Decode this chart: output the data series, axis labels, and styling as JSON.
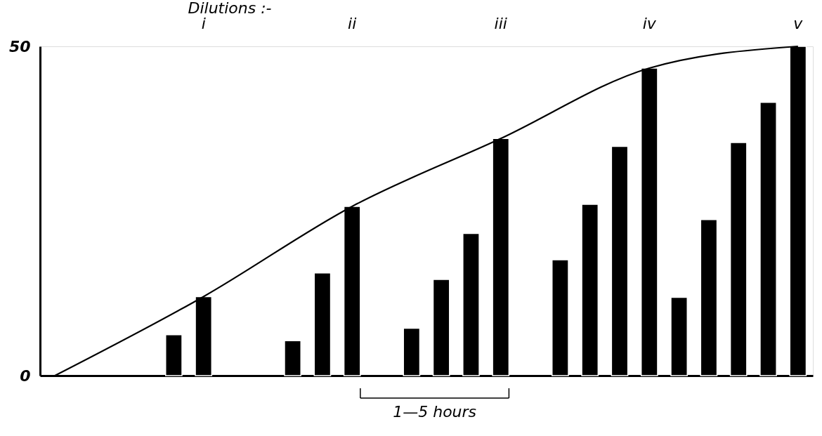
{
  "chart_data": {
    "type": "bar",
    "title": "Dilutions :-",
    "categories": [
      null,
      null,
      null,
      null,
      null,
      null,
      null,
      null,
      null,
      null,
      null,
      null,
      null,
      null,
      null,
      null,
      null,
      null,
      null,
      null,
      null,
      null,
      null,
      null,
      null,
      null
    ],
    "series": [
      {
        "color": "#000000",
        "values": [
          null,
          null,
          null,
          null,
          6.2,
          12.0,
          null,
          null,
          5.3,
          15.6,
          25.7,
          null,
          7.2,
          14.6,
          21.6,
          36.0,
          null,
          17.6,
          26.0,
          34.8,
          46.7,
          11.9,
          23.7,
          35.4,
          41.5,
          50
        ]
      },
      {
        "type": "line",
        "color": "#000000",
        "values": [
          0,
          null,
          null,
          null,
          null,
          12.0,
          null,
          null,
          null,
          null,
          25.7,
          null,
          null,
          null,
          null,
          36.0,
          null,
          null,
          null,
          null,
          46.7,
          null,
          null,
          null,
          null,
          50
        ]
      }
    ],
    "ylim": [
      0,
      50
    ],
    "yticks": [
      0,
      50
    ],
    "grid": false,
    "marker": "none",
    "line_style": "solid",
    "annotations": [
      "i",
      "ii",
      "iii",
      "iv",
      "v",
      "1—5 hours"
    ]
  }
}
